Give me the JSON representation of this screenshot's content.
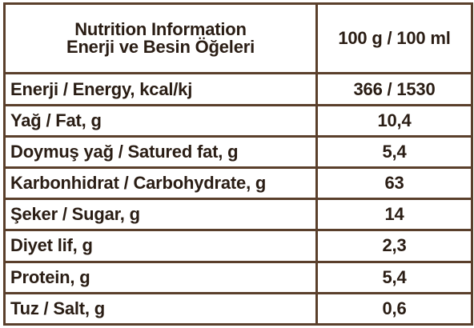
{
  "header": {
    "label_line1": "Nutrition Information",
    "label_line2": "Enerji ve Besin Öğeleri",
    "unit": "100 g / 100 ml"
  },
  "rows": [
    {
      "label": "Enerji / Energy, kcal/kj",
      "value": "366 / 1530"
    },
    {
      "label": "Yağ / Fat, g",
      "value": "10,4"
    },
    {
      "label": "Doymuş yağ / Satured fat, g",
      "value": "5,4"
    },
    {
      "label": "Karbonhidrat / Carbohydrate, g",
      "value": "63"
    },
    {
      "label": "Şeker / Sugar, g",
      "value": "14"
    },
    {
      "label": "Diyet lif, g",
      "value": "2,3"
    },
    {
      "label": "Protein, g",
      "value": "5,4"
    },
    {
      "label": "Tuz / Salt, g",
      "value": "0,6"
    }
  ],
  "colors": {
    "border": "#5a3f2b",
    "text": "#2a1d14",
    "background": "#ffffff"
  }
}
